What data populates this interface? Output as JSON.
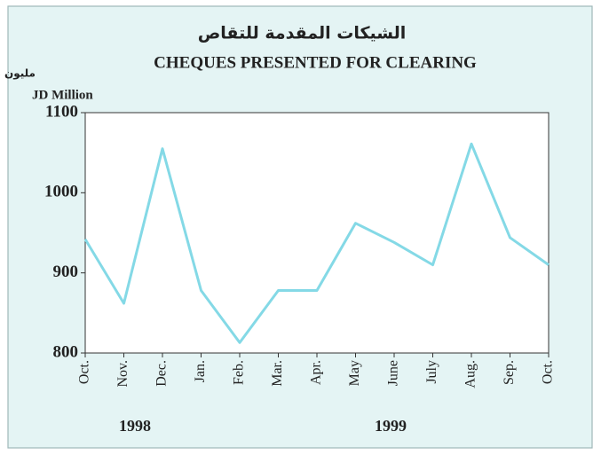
{
  "chart_data": {
    "type": "line",
    "title_ar": "الشيكات المقدمة للتقاص",
    "title": "CHEQUES PRESENTED FOR CLEARING",
    "y_label_ar": "مليون دينار",
    "y_label": "JD Million",
    "categories": [
      "Oct.",
      "Nov.",
      "Dec.",
      "Jan.",
      "Feb.",
      "Mar.",
      "Apr.",
      "May",
      "June",
      "July",
      "Aug.",
      "Sep.",
      "Oct."
    ],
    "year_labels": [
      "1998",
      "1999"
    ],
    "series": [
      {
        "name": "Cheques",
        "color": "#84d9e6",
        "values": [
          942,
          862,
          1055,
          878,
          813,
          878,
          878,
          962,
          938,
          910,
          1061,
          944,
          910
        ]
      }
    ],
    "ylim": [
      800,
      1100
    ],
    "yticks": [
      800,
      900,
      1000,
      1100
    ]
  }
}
